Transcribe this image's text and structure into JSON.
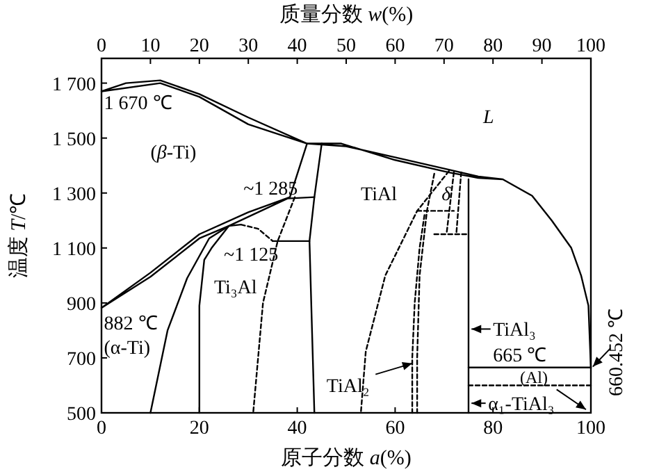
{
  "chart_data": {
    "type": "line",
    "xlabel": "原子分数 *a*(%)",
    "ylabel": "温度 *T*/℃",
    "x2label": "质量分数 *w*(%)",
    "xlim": [
      0,
      100
    ],
    "xticks": [
      0,
      20,
      40,
      60,
      80,
      100
    ],
    "x2lim": [
      0,
      100
    ],
    "x2ticks": [
      0,
      10,
      20,
      30,
      40,
      50,
      60,
      70,
      80,
      90,
      100
    ],
    "ylim": [
      500,
      1790
    ],
    "yticks": [
      500,
      {
        "value": 700,
        "label": "700"
      },
      {
        "value": 900,
        "label": "900"
      },
      {
        "value": 1100,
        "label": "1 100"
      },
      {
        "value": 1300,
        "label": "1 300"
      },
      {
        "value": 1500,
        "label": "1 500"
      },
      {
        "value": 1700,
        "label": "1 700"
      }
    ],
    "series": [
      {
        "color": "#000000",
        "x": [
          82,
          77,
          71,
          60,
          49,
          42,
          30,
          20,
          12,
          0,
          5,
          12,
          20,
          30,
          42,
          50,
          60,
          71,
          77,
          82,
          88,
          92,
          96,
          98,
          99.5,
          100
        ],
        "values": [
          1350,
          1355,
          1375,
          1420,
          1480,
          1480,
          1550,
          1650,
          1700,
          1670,
          1700,
          1710,
          1660,
          1575,
          1480,
          1470,
          1430,
          1385,
          1360,
          1350,
          1290,
          1200,
          1100,
          1000,
          890,
          662
        ]
      },
      {
        "color": "#000000",
        "x": [
          45,
          43.5,
          42.5,
          43.5
        ],
        "values": [
          1480,
          1285,
          1125,
          500
        ]
      },
      {
        "color": "#000000",
        "line_style": "dashed",
        "x": [
          39.5,
          36,
          33,
          31
        ],
        "values": [
          1285,
          1125,
          900,
          500
        ]
      },
      {
        "color": "#000000",
        "x": [
          35,
          42.5
        ],
        "values": [
          1125,
          1125
        ]
      },
      {
        "color": "#000000",
        "x": [
          42,
          38.5,
          30,
          20,
          10,
          0,
          10,
          20,
          26,
          38,
          43.5
        ],
        "values": [
          1480,
          1285,
          1230,
          1150,
          1010,
          882,
          995,
          1135,
          1180,
          1280,
          1285
        ]
      },
      {
        "color": "#000000",
        "x": [
          26,
          22,
          17.5,
          13.5,
          10
        ],
        "values": [
          1180,
          1135,
          990,
          800,
          500
        ]
      },
      {
        "color": "#000000",
        "x": [
          20,
          20,
          21,
          22.5,
          26,
          28.5
        ],
        "values": [
          500,
          890,
          1057,
          1100,
          1180,
          1185
        ]
      },
      {
        "color": "#000000",
        "line_style": "dashed",
        "x": [
          28.5,
          32,
          35
        ],
        "values": [
          1185,
          1170,
          1125
        ]
      },
      {
        "color": "#000000",
        "line_style": "dashed",
        "x": [
          71,
          64.5,
          58,
          54,
          53
        ],
        "values": [
          1380,
          1235,
          1000,
          723,
          500
        ]
      },
      {
        "color": "#000000",
        "line_style": "dashed",
        "x": [
          68,
          66.5,
          65,
          64.5,
          64.5
        ],
        "values": [
          1370,
          1235,
          1000,
          700,
          500
        ]
      },
      {
        "color": "#000000",
        "line_style": "dashed",
        "x": [
          66,
          65,
          64,
          63.5,
          63.5
        ],
        "values": [
          1220,
          1100,
          900,
          700,
          500
        ]
      },
      {
        "color": "#000000",
        "line_style": "dashed",
        "x": [
          64.5,
          72
        ],
        "values": [
          1235,
          1235
        ]
      },
      {
        "color": "#000000",
        "line_style": "dashed",
        "x": [
          72,
          70.5
        ],
        "values": [
          1375,
          1150
        ]
      },
      {
        "color": "#000000",
        "line_style": "dashed",
        "x": [
          73.5,
          72.5
        ],
        "values": [
          1375,
          1150
        ]
      },
      {
        "color": "#000000",
        "line_style": "dashed",
        "x": [
          68,
          75
        ],
        "values": [
          1150,
          1150
        ]
      },
      {
        "color": "#000000",
        "x": [
          75,
          75
        ],
        "values": [
          1350,
          500
        ]
      },
      {
        "color": "#000000",
        "x": [
          75,
          100
        ],
        "values": [
          665,
          665
        ]
      },
      {
        "color": "#000000",
        "line_style": "dashed",
        "x": [
          75,
          100
        ],
        "values": [
          600,
          600
        ]
      }
    ],
    "annotations": [
      "1 670 ℃",
      "*L*",
      "(*β*-Ti)",
      "~1 285",
      "TiAl",
      "*δ*",
      "~1 125",
      "Ti₃Al",
      "882 ℃",
      "(α-Ti)",
      "TiAl₃",
      "TiAl₂",
      "665 ℃",
      "(Al)",
      "α₁-TiAl₃",
      "660.452 ℃"
    ]
  }
}
